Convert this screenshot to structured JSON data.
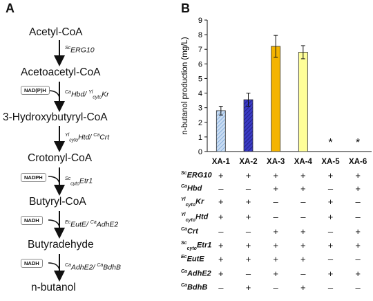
{
  "panel_a": {
    "letter": "A",
    "metabolites": [
      "Acetyl-CoA",
      "Acetoacetyl-CoA",
      "3-Hydroxybutyryl-CoA",
      "Crotonyl-CoA",
      "Butyryl-CoA",
      "Butyradehyde",
      "n-butanol"
    ],
    "steps": [
      {
        "cofactor": "",
        "enzyme_html": "<sup>Sc</sup>ERG10"
      },
      {
        "cofactor": "NAD(P)H",
        "enzyme_html": "<sup>Ca</sup>Hbd/ <sup>Yl</sup><sub>cyto</sub>Kr"
      },
      {
        "cofactor": "",
        "enzyme_html": "<sup>Yl</sup><sub>cyto</sub>Htd/ <sup>Ca</sup>Crt"
      },
      {
        "cofactor": "NADPH",
        "enzyme_html": "<sup>Sc</sup><sub>cyto</sub>Etr1"
      },
      {
        "cofactor": "NADH",
        "enzyme_html": "<sup>Ec</sup>EutE/ <sup>Ca</sup>AdhE2"
      },
      {
        "cofactor": "NADH",
        "enzyme_html": "<sup>Ca</sup>AdhE2/ <sup>Ca</sup>BdhB"
      }
    ]
  },
  "panel_b": {
    "letter": "B",
    "strains": [
      "XA-1",
      "XA-2",
      "XA-3",
      "XA-4",
      "XA-5",
      "XA-6"
    ],
    "gene_rows": [
      {
        "label_html": "<sup>Sc</sup>ERG10",
        "marks": [
          "+",
          "+",
          "+",
          "+",
          "+",
          "+"
        ]
      },
      {
        "label_html": "<sup>Ca</sup>Hbd",
        "marks": [
          "–",
          "–",
          "+",
          "+",
          "–",
          "+"
        ]
      },
      {
        "label_html": "<sup>Yl</sup><sub>cyto</sub>Kr",
        "marks": [
          "+",
          "+",
          "–",
          "–",
          "+",
          "–"
        ]
      },
      {
        "label_html": "<sup>Yl</sup><sub>cyto</sub>Htd",
        "marks": [
          "+",
          "+",
          "–",
          "–",
          "+",
          "–"
        ]
      },
      {
        "label_html": "<sup>Ca</sup>Crt",
        "marks": [
          "–",
          "–",
          "+",
          "+",
          "–",
          "+"
        ]
      },
      {
        "label_html": "<sup>Sc</sup><sub>cyto</sub>Etr1",
        "marks": [
          "+",
          "+",
          "+",
          "+",
          "+",
          "+"
        ]
      },
      {
        "label_html": "<sup>Ec</sup>EutE",
        "marks": [
          "+",
          "+",
          "+",
          "+",
          "–",
          "–"
        ]
      },
      {
        "label_html": "<sup>Ca</sup>AdhE2",
        "marks": [
          "+",
          "–",
          "+",
          "–",
          "+",
          "+"
        ]
      },
      {
        "label_html": "<sup>Ca</sup>BdhB",
        "marks": [
          "–",
          "+",
          "–",
          "+",
          "–",
          "–"
        ]
      }
    ]
  },
  "chart_data": {
    "type": "bar",
    "title": "",
    "xlabel": "",
    "ylabel": "n-butanol production (mg/L)",
    "ylim": [
      0,
      9
    ],
    "yticks": [
      0,
      1,
      2,
      3,
      4,
      5,
      6,
      7,
      8,
      9
    ],
    "categories": [
      "XA-1",
      "XA-2",
      "XA-3",
      "XA-4",
      "XA-5",
      "XA-6"
    ],
    "values": [
      2.8,
      3.55,
      7.2,
      6.8,
      0,
      0
    ],
    "errors": [
      0.3,
      0.45,
      0.75,
      0.45,
      0,
      0
    ],
    "annotations": [
      "",
      "",
      "",
      "",
      "*",
      "*"
    ],
    "bar_fills": [
      "#c9dcf2",
      "#3b3bc4",
      "#f4b400",
      "#ffff99",
      "#ffffff",
      "#ffffff"
    ],
    "hatched": [
      true,
      true,
      false,
      false,
      false,
      false
    ],
    "grid": false,
    "legend": "none"
  }
}
